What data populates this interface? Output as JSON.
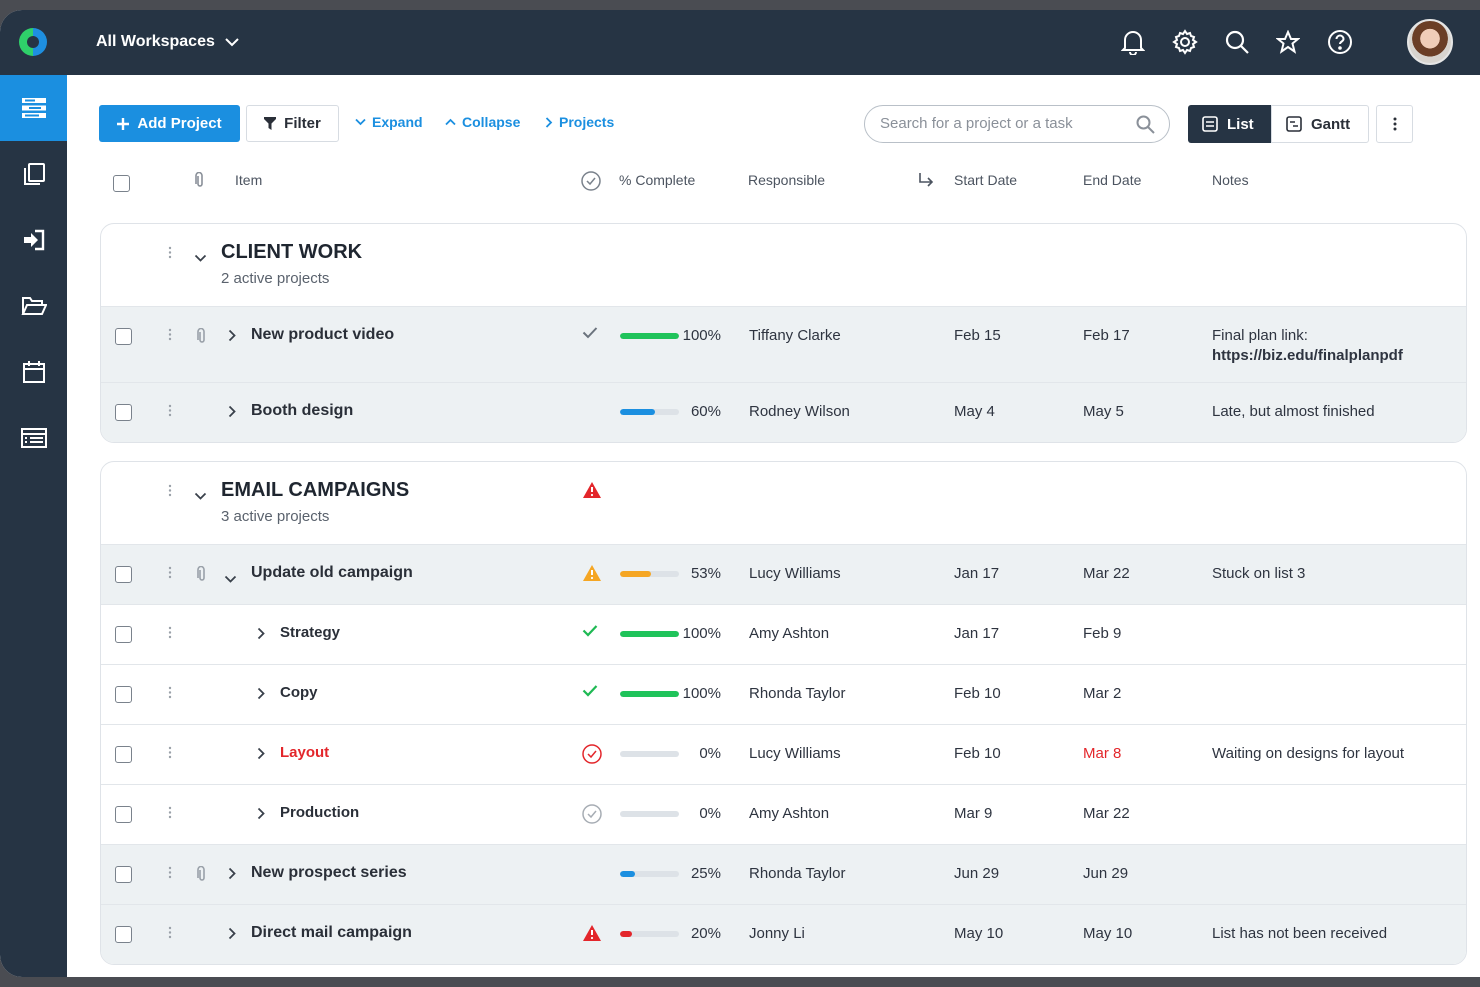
{
  "header": {
    "workspace_label": "All Workspaces"
  },
  "toolbar": {
    "add_project": "Add Project",
    "filter": "Filter",
    "expand": "Expand",
    "collapse": "Collapse",
    "projects": "Projects",
    "search_placeholder": "Search for a project or a task",
    "view_list": "List",
    "view_gantt": "Gantt"
  },
  "columns": {
    "item": "Item",
    "complete": "% Complete",
    "responsible": "Responsible",
    "start": "Start Date",
    "end": "End Date",
    "notes": "Notes"
  },
  "groups": [
    {
      "title": "CLIENT WORK",
      "subtitle": "2 active projects",
      "rows": [
        {
          "name": "New product video",
          "status": "check",
          "pct": "100%",
          "progress": 1.0,
          "color": "#1fc35a",
          "responsible": "Tiffany Clarke",
          "start": "Feb 15",
          "end": "Feb 17",
          "notes": "Final plan link:",
          "notes2": "https://biz.edu/finalplanpdf"
        },
        {
          "name": "Booth design",
          "status": "none",
          "pct": "60%",
          "progress": 0.6,
          "color": "#1b8fe0",
          "responsible": "Rodney Wilson",
          "start": "May 4",
          "end": "May 5",
          "notes": "Late, but almost finished"
        }
      ]
    },
    {
      "title": "EMAIL CAMPAIGNS",
      "subtitle": "3 active projects",
      "rows": [
        {
          "name": "Update old campaign",
          "status": "warn",
          "pct": "53%",
          "progress": 0.53,
          "color": "#f5a623",
          "responsible": "Lucy Williams",
          "start": "Jan 17",
          "end": "Mar 22",
          "notes": "Stuck on list 3"
        },
        {
          "name": "Strategy",
          "status": "check-green",
          "pct": "100%",
          "progress": 1.0,
          "color": "#1fc35a",
          "responsible": "Amy Ashton",
          "start": "Jan 17",
          "end": "Feb 9",
          "notes": ""
        },
        {
          "name": "Copy",
          "status": "check-green",
          "pct": "100%",
          "progress": 1.0,
          "color": "#1fc35a",
          "responsible": "Rhonda Taylor",
          "start": "Feb 10",
          "end": "Mar 2",
          "notes": ""
        },
        {
          "name": "Layout",
          "status": "circle-red",
          "pct": "0%",
          "progress": 0,
          "color": "#dde2e7",
          "responsible": "Lucy Williams",
          "start": "Feb 10",
          "end": "Mar 8",
          "notes": "Waiting on designs for layout"
        },
        {
          "name": "Production",
          "status": "circle-gray",
          "pct": "0%",
          "progress": 0,
          "color": "#dde2e7",
          "responsible": "Amy Ashton",
          "start": "Mar 9",
          "end": "Mar 22",
          "notes": ""
        },
        {
          "name": "New prospect series",
          "status": "none",
          "pct": "25%",
          "progress": 0.25,
          "color": "#1b8fe0",
          "responsible": "Rhonda Taylor",
          "start": "Jun 29",
          "end": "Jun 29",
          "notes": ""
        },
        {
          "name": "Direct mail campaign",
          "status": "alert-red",
          "pct": "20%",
          "progress": 0.2,
          "color": "#e3262b",
          "responsible": "Jonny Li",
          "start": "May 10",
          "end": "May 10",
          "notes": "List has not been received"
        }
      ]
    }
  ]
}
